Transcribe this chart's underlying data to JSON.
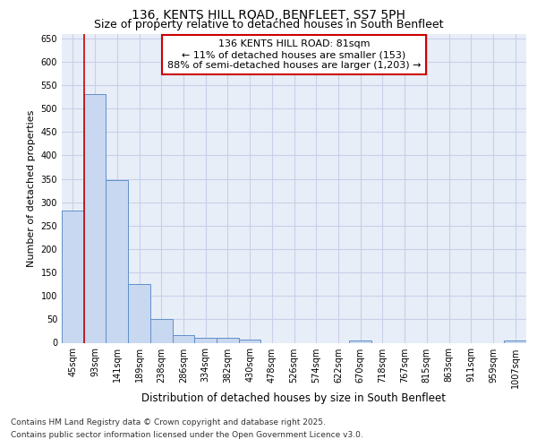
{
  "title_line1": "136, KENTS HILL ROAD, BENFLEET, SS7 5PH",
  "title_line2": "Size of property relative to detached houses in South Benfleet",
  "xlabel": "Distribution of detached houses by size in South Benfleet",
  "ylabel": "Number of detached properties",
  "categories": [
    "45sqm",
    "93sqm",
    "141sqm",
    "189sqm",
    "238sqm",
    "286sqm",
    "334sqm",
    "382sqm",
    "430sqm",
    "478sqm",
    "526sqm",
    "574sqm",
    "622sqm",
    "670sqm",
    "718sqm",
    "767sqm",
    "815sqm",
    "863sqm",
    "911sqm",
    "959sqm",
    "1007sqm"
  ],
  "values": [
    283,
    530,
    348,
    125,
    50,
    17,
    11,
    10,
    6,
    0,
    0,
    0,
    0,
    5,
    0,
    0,
    0,
    0,
    0,
    0,
    5
  ],
  "bar_color": "#c8d8f0",
  "bar_edge_color": "#6090c8",
  "vline_x": 0.5,
  "vline_color": "#cc0000",
  "annotation_text": "136 KENTS HILL ROAD: 81sqm\n← 11% of detached houses are smaller (153)\n88% of semi-detached houses are larger (1,203) →",
  "annotation_box_color": "#cc0000",
  "ylim": [
    0,
    660
  ],
  "yticks": [
    0,
    50,
    100,
    150,
    200,
    250,
    300,
    350,
    400,
    450,
    500,
    550,
    600,
    650
  ],
  "bg_color": "#ffffff",
  "plot_bg_color": "#e8eef8",
  "grid_color": "#c8d0e8",
  "footer_line1": "Contains HM Land Registry data © Crown copyright and database right 2025.",
  "footer_line2": "Contains public sector information licensed under the Open Government Licence v3.0.",
  "title_fontsize": 10,
  "subtitle_fontsize": 9,
  "tick_fontsize": 7,
  "ylabel_fontsize": 8,
  "xlabel_fontsize": 8.5,
  "footer_fontsize": 6.5,
  "annotation_fontsize": 8
}
